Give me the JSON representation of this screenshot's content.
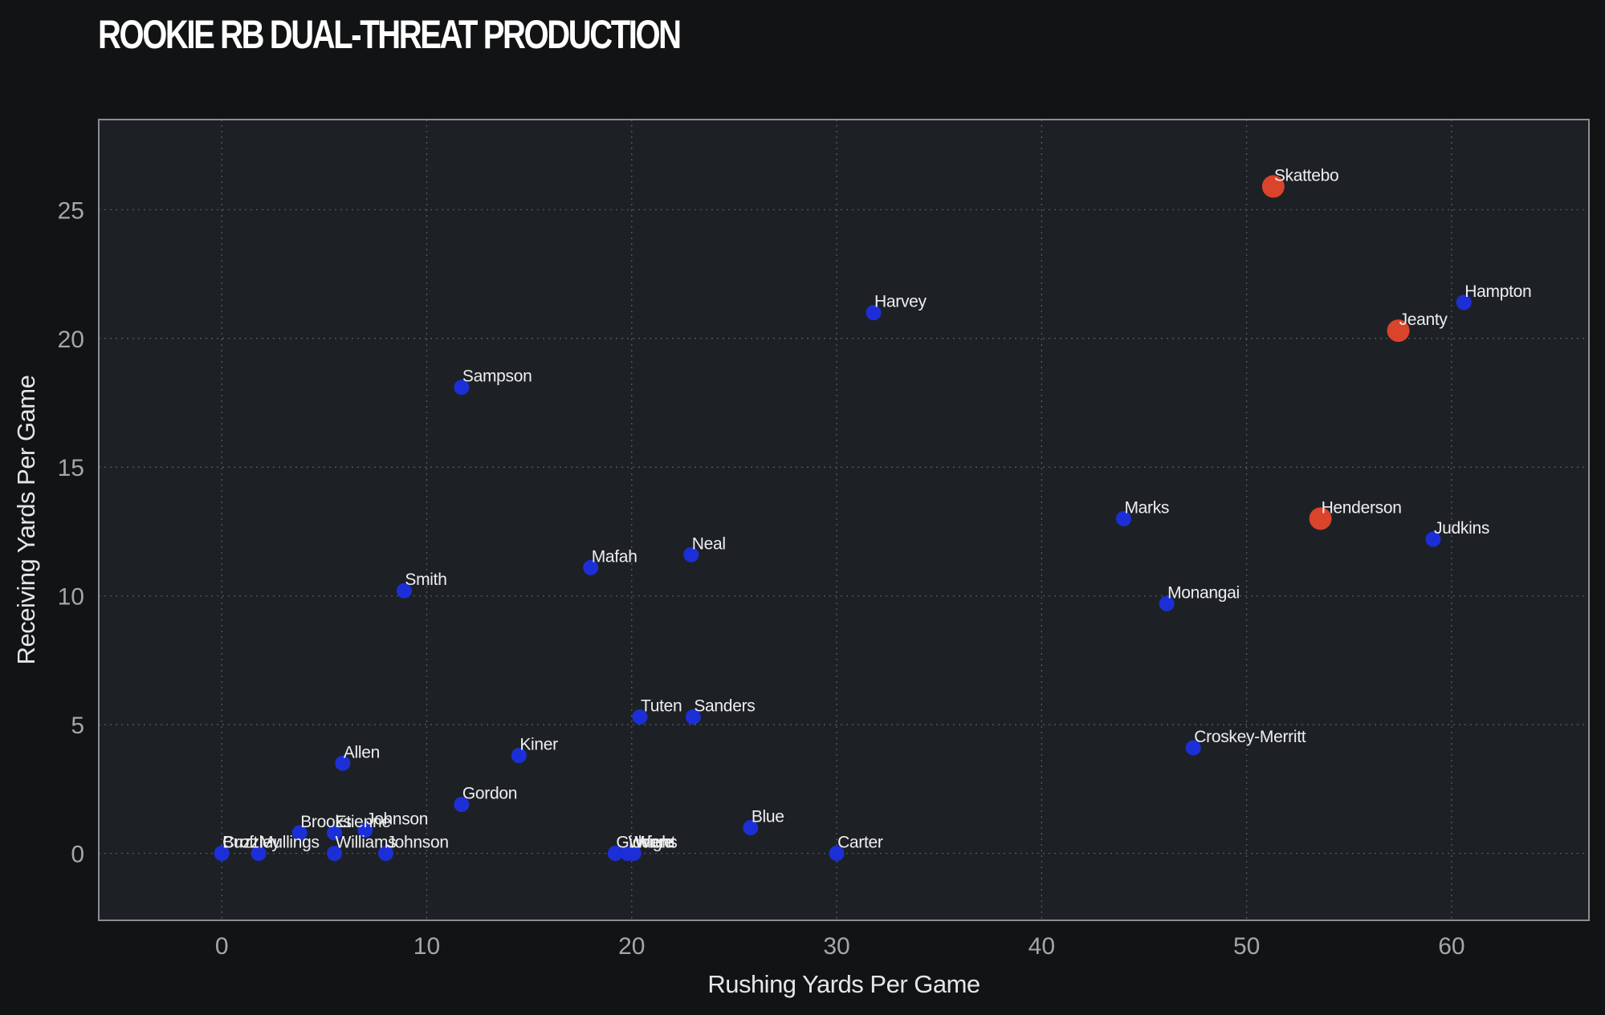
{
  "chart_data": {
    "type": "scatter",
    "title": "ROOKIE RB DUAL-THREAT PRODUCTION",
    "xlabel": "Rushing Yards Per Game",
    "ylabel": "Receiving Yards Per Game",
    "xlim": [
      -6,
      66.7
    ],
    "ylim": [
      -2.6,
      28.5
    ],
    "xticks": [
      0,
      10,
      20,
      30,
      40,
      50,
      60
    ],
    "yticks": [
      0,
      5,
      10,
      15,
      20,
      25
    ],
    "grid": true,
    "colors": {
      "background": "#121314",
      "plot_background": "#1d2126",
      "plot_border": "#8a8e94",
      "grid": "#5a5f66",
      "point": "#1c2fd6",
      "highlight": "#d9442b"
    },
    "points": [
      {
        "name": "Skattebo",
        "x": 51.3,
        "y": 25.9,
        "highlight": true
      },
      {
        "name": "Jeanty",
        "x": 57.4,
        "y": 20.3,
        "highlight": true
      },
      {
        "name": "Henderson",
        "x": 53.6,
        "y": 13.0,
        "highlight": true
      },
      {
        "name": "Hampton",
        "x": 60.6,
        "y": 21.4,
        "highlight": false
      },
      {
        "name": "Harvey",
        "x": 31.8,
        "y": 21.0,
        "highlight": false
      },
      {
        "name": "Sampson",
        "x": 11.7,
        "y": 18.1,
        "highlight": false
      },
      {
        "name": "Marks",
        "x": 44.0,
        "y": 13.0,
        "highlight": false
      },
      {
        "name": "Judkins",
        "x": 59.1,
        "y": 12.2,
        "highlight": false
      },
      {
        "name": "Neal",
        "x": 22.9,
        "y": 11.6,
        "highlight": false
      },
      {
        "name": "Mafah",
        "x": 18.0,
        "y": 11.1,
        "highlight": false
      },
      {
        "name": "Smith",
        "x": 8.9,
        "y": 10.2,
        "highlight": false
      },
      {
        "name": "Monangai",
        "x": 46.1,
        "y": 9.7,
        "highlight": false
      },
      {
        "name": "Tuten",
        "x": 20.4,
        "y": 5.3,
        "highlight": false
      },
      {
        "name": "Sanders",
        "x": 23.0,
        "y": 5.3,
        "highlight": false
      },
      {
        "name": "Croskey-Merritt",
        "x": 47.4,
        "y": 4.1,
        "highlight": false
      },
      {
        "name": "Kiner",
        "x": 14.5,
        "y": 3.8,
        "highlight": false
      },
      {
        "name": "Allen",
        "x": 5.9,
        "y": 3.5,
        "highlight": false
      },
      {
        "name": "Gordon",
        "x": 11.7,
        "y": 1.9,
        "highlight": false
      },
      {
        "name": "Blue",
        "x": 25.8,
        "y": 1.0,
        "highlight": false
      },
      {
        "name": "Brooks",
        "x": 3.8,
        "y": 0.8,
        "highlight": false
      },
      {
        "name": "Etienne",
        "x": 5.5,
        "y": 0.8,
        "highlight": false
      },
      {
        "name": "Johnson",
        "x": 7.0,
        "y": 0.9,
        "highlight": false
      },
      {
        "name": "Carter",
        "x": 30.0,
        "y": 0.0,
        "highlight": false
      },
      {
        "name": "Buzzley",
        "x": 0.0,
        "y": 0.0,
        "highlight": false
      },
      {
        "name": "Croft",
        "x": 0.0,
        "y": 0.0,
        "highlight": false
      },
      {
        "name": "Mullings",
        "x": 1.8,
        "y": 0.0,
        "highlight": false
      },
      {
        "name": "Williams",
        "x": 5.5,
        "y": 0.0,
        "highlight": false
      },
      {
        "name": "Johnson",
        "x": 8.0,
        "y": 0.0,
        "highlight": false
      },
      {
        "name": "Giddens",
        "x": 19.2,
        "y": 0.0,
        "highlight": false
      },
      {
        "name": "Wright",
        "x": 19.8,
        "y": 0.0,
        "highlight": false
      },
      {
        "name": "Ware",
        "x": 20.1,
        "y": 0.0,
        "highlight": false
      }
    ]
  }
}
